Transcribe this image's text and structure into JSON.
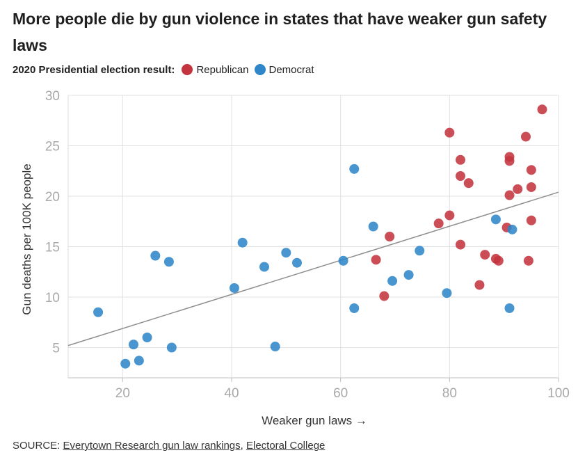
{
  "chart_data": {
    "type": "scatter",
    "title": "More people die by gun violence in states that have weaker gun safety laws",
    "legend_title": "2020 Presidential election result:",
    "xlabel": "Weaker gun laws →",
    "ylabel": "Gun deaths per 100K people",
    "xlim": [
      10,
      100
    ],
    "ylim": [
      2,
      30
    ],
    "x_ticks": [
      20,
      40,
      60,
      80,
      100
    ],
    "y_ticks": [
      5,
      10,
      15,
      20,
      25,
      30
    ],
    "grid": true,
    "legend_position": "top-left",
    "trendline": {
      "x": [
        10,
        100
      ],
      "y": [
        5.2,
        20.4
      ]
    },
    "series": [
      {
        "name": "Republican",
        "color": "#c4343f",
        "points": [
          [
            97,
            28.6
          ],
          [
            80,
            26.3
          ],
          [
            94,
            25.9
          ],
          [
            91,
            23.9
          ],
          [
            82,
            23.6
          ],
          [
            91,
            23.5
          ],
          [
            95,
            22.6
          ],
          [
            82,
            22.0
          ],
          [
            83.5,
            21.3
          ],
          [
            95,
            20.9
          ],
          [
            92.5,
            20.7
          ],
          [
            91,
            20.1
          ],
          [
            80,
            18.1
          ],
          [
            78,
            17.3
          ],
          [
            95,
            17.6
          ],
          [
            90.5,
            16.9
          ],
          [
            69,
            16.0
          ],
          [
            82,
            15.2
          ],
          [
            86.5,
            14.2
          ],
          [
            88.5,
            13.8
          ],
          [
            89,
            13.6
          ],
          [
            94.5,
            13.6
          ],
          [
            66.5,
            13.7
          ],
          [
            85.5,
            11.2
          ],
          [
            68,
            10.1
          ]
        ]
      },
      {
        "name": "Democrat",
        "color": "#2f86c8",
        "points": [
          [
            62.5,
            22.7
          ],
          [
            88.5,
            17.7
          ],
          [
            91.5,
            16.7
          ],
          [
            66,
            17.0
          ],
          [
            42,
            15.4
          ],
          [
            26,
            14.1
          ],
          [
            28.5,
            13.5
          ],
          [
            50,
            14.4
          ],
          [
            46,
            13.0
          ],
          [
            52,
            13.4
          ],
          [
            60.5,
            13.6
          ],
          [
            74.5,
            14.6
          ],
          [
            72.5,
            12.2
          ],
          [
            69.5,
            11.6
          ],
          [
            40.5,
            10.9
          ],
          [
            79.5,
            10.4
          ],
          [
            62.5,
            8.9
          ],
          [
            91,
            8.9
          ],
          [
            15.5,
            8.5
          ],
          [
            24.5,
            6.0
          ],
          [
            22,
            5.3
          ],
          [
            29,
            5.0
          ],
          [
            48,
            5.1
          ],
          [
            23,
            3.7
          ],
          [
            20.5,
            3.4
          ]
        ]
      }
    ]
  },
  "source": {
    "prefix": "SOURCE: ",
    "link1": "Everytown Research gun law rankings",
    "separator": ", ",
    "link2": "Electoral College"
  }
}
